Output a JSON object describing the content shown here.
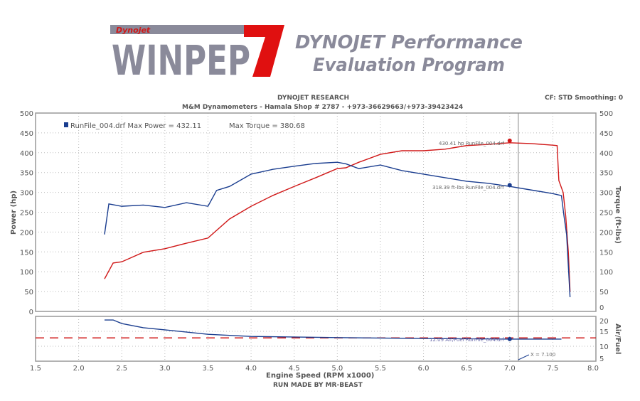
{
  "logo": {
    "brand": "Dynojet",
    "product": "WINPEP",
    "version": "7"
  },
  "tagline": {
    "line1": "DYNOJET Performance",
    "line2": "Evaluation Program"
  },
  "header": {
    "company": "DYNOJET RESEARCH",
    "shop": "M&M Dynamometers - Hamala Shop # 2787 - +973-36629663/+973-39423424",
    "settings": "CF: STD  Smoothing: 0"
  },
  "footer": "RUN MADE BY MR-BEAST",
  "colors": {
    "power": "#d01818",
    "torque": "#1a3d8f",
    "afr": "#1a3d8f",
    "afr_target": "#d01818",
    "cursor": "#888888"
  },
  "chart_data": [
    {
      "type": "line",
      "legend": "RunFile_004.drf Max Power = 432.11",
      "legend_extra": "Max Torque = 380.68",
      "xlabel": "Engine Speed (RPM x1000)",
      "ylabel": "Power (hp)",
      "y2label": "Torque (ft-lbs)",
      "xlim": [
        1.5,
        8.0
      ],
      "ylim": [
        0,
        500
      ],
      "xticks": [
        "1.5",
        "2.0",
        "2.5",
        "3.0",
        "3.5",
        "4.0",
        "4.5",
        "5.0",
        "5.5",
        "6.0",
        "6.5",
        "7.0",
        "7.5",
        "8.0"
      ],
      "yticks": [
        "0",
        "50",
        "100",
        "150",
        "200",
        "250",
        "300",
        "350",
        "400",
        "450",
        "500"
      ],
      "grid": true,
      "series": [
        {
          "name": "Power",
          "x": [
            2.3,
            2.4,
            2.5,
            2.75,
            3.0,
            3.25,
            3.5,
            3.75,
            4.0,
            4.25,
            4.5,
            4.75,
            5.0,
            5.1,
            5.25,
            5.5,
            5.75,
            6.0,
            6.25,
            6.5,
            6.75,
            7.0,
            7.25,
            7.5,
            7.55,
            7.57,
            7.62,
            7.65,
            7.68,
            7.7
          ],
          "y": [
            82,
            122,
            125,
            149,
            158,
            172,
            185,
            233,
            265,
            292,
            315,
            337,
            360,
            362,
            376,
            396,
            405,
            405,
            409,
            418,
            421,
            425,
            423,
            419,
            418,
            330,
            300,
            240,
            150,
            50
          ]
        },
        {
          "name": "Torque",
          "x": [
            2.3,
            2.35,
            2.5,
            2.75,
            3.0,
            3.25,
            3.5,
            3.6,
            3.75,
            4.0,
            4.25,
            4.5,
            4.75,
            5.0,
            5.1,
            5.25,
            5.5,
            5.75,
            6.0,
            6.25,
            6.5,
            6.75,
            7.0,
            7.25,
            7.5,
            7.6,
            7.63,
            7.66,
            7.7
          ],
          "y": [
            194,
            271,
            265,
            268,
            262,
            274,
            265,
            305,
            315,
            346,
            358,
            366,
            373,
            376,
            372,
            360,
            369,
            355,
            346,
            337,
            328,
            323,
            315,
            306,
            297,
            292,
            240,
            194,
            36
          ]
        }
      ],
      "annotations": [
        {
          "text": "430.41 hp RunFile_004.drf",
          "x": 7.0,
          "y": 430.41
        },
        {
          "text": "318.39 ft-lbs RunFile_004.drf",
          "x": 7.0,
          "y": 318.39
        }
      ],
      "cursor_x": 7.1
    },
    {
      "type": "line",
      "y2label": "Air/Fuel",
      "xlim": [
        1.5,
        8.0
      ],
      "ylim": [
        5,
        20
      ],
      "yticks": [
        "5",
        "10",
        "15",
        "20"
      ],
      "series": [
        {
          "name": "Air/Fuel",
          "x": [
            2.3,
            2.4,
            2.5,
            2.75,
            3.0,
            3.5,
            4.0,
            5.0,
            6.0,
            7.0,
            7.5,
            7.6
          ],
          "y": [
            18.8,
            18.8,
            17.6,
            16.2,
            15.5,
            14.0,
            13.3,
            12.9,
            12.6,
            12.4,
            12.4,
            12.4
          ]
        },
        {
          "name": "Target",
          "x": [
            1.5,
            8.0
          ],
          "y": [
            12.8,
            12.8
          ]
        }
      ],
      "annotations": [
        {
          "text": "12.09 Air/Fuel RunFile_004.drf",
          "x": 7.0,
          "y": 12.4
        },
        {
          "text": "X = 7.100",
          "x": 7.1,
          "y": 5.5
        }
      ]
    }
  ]
}
